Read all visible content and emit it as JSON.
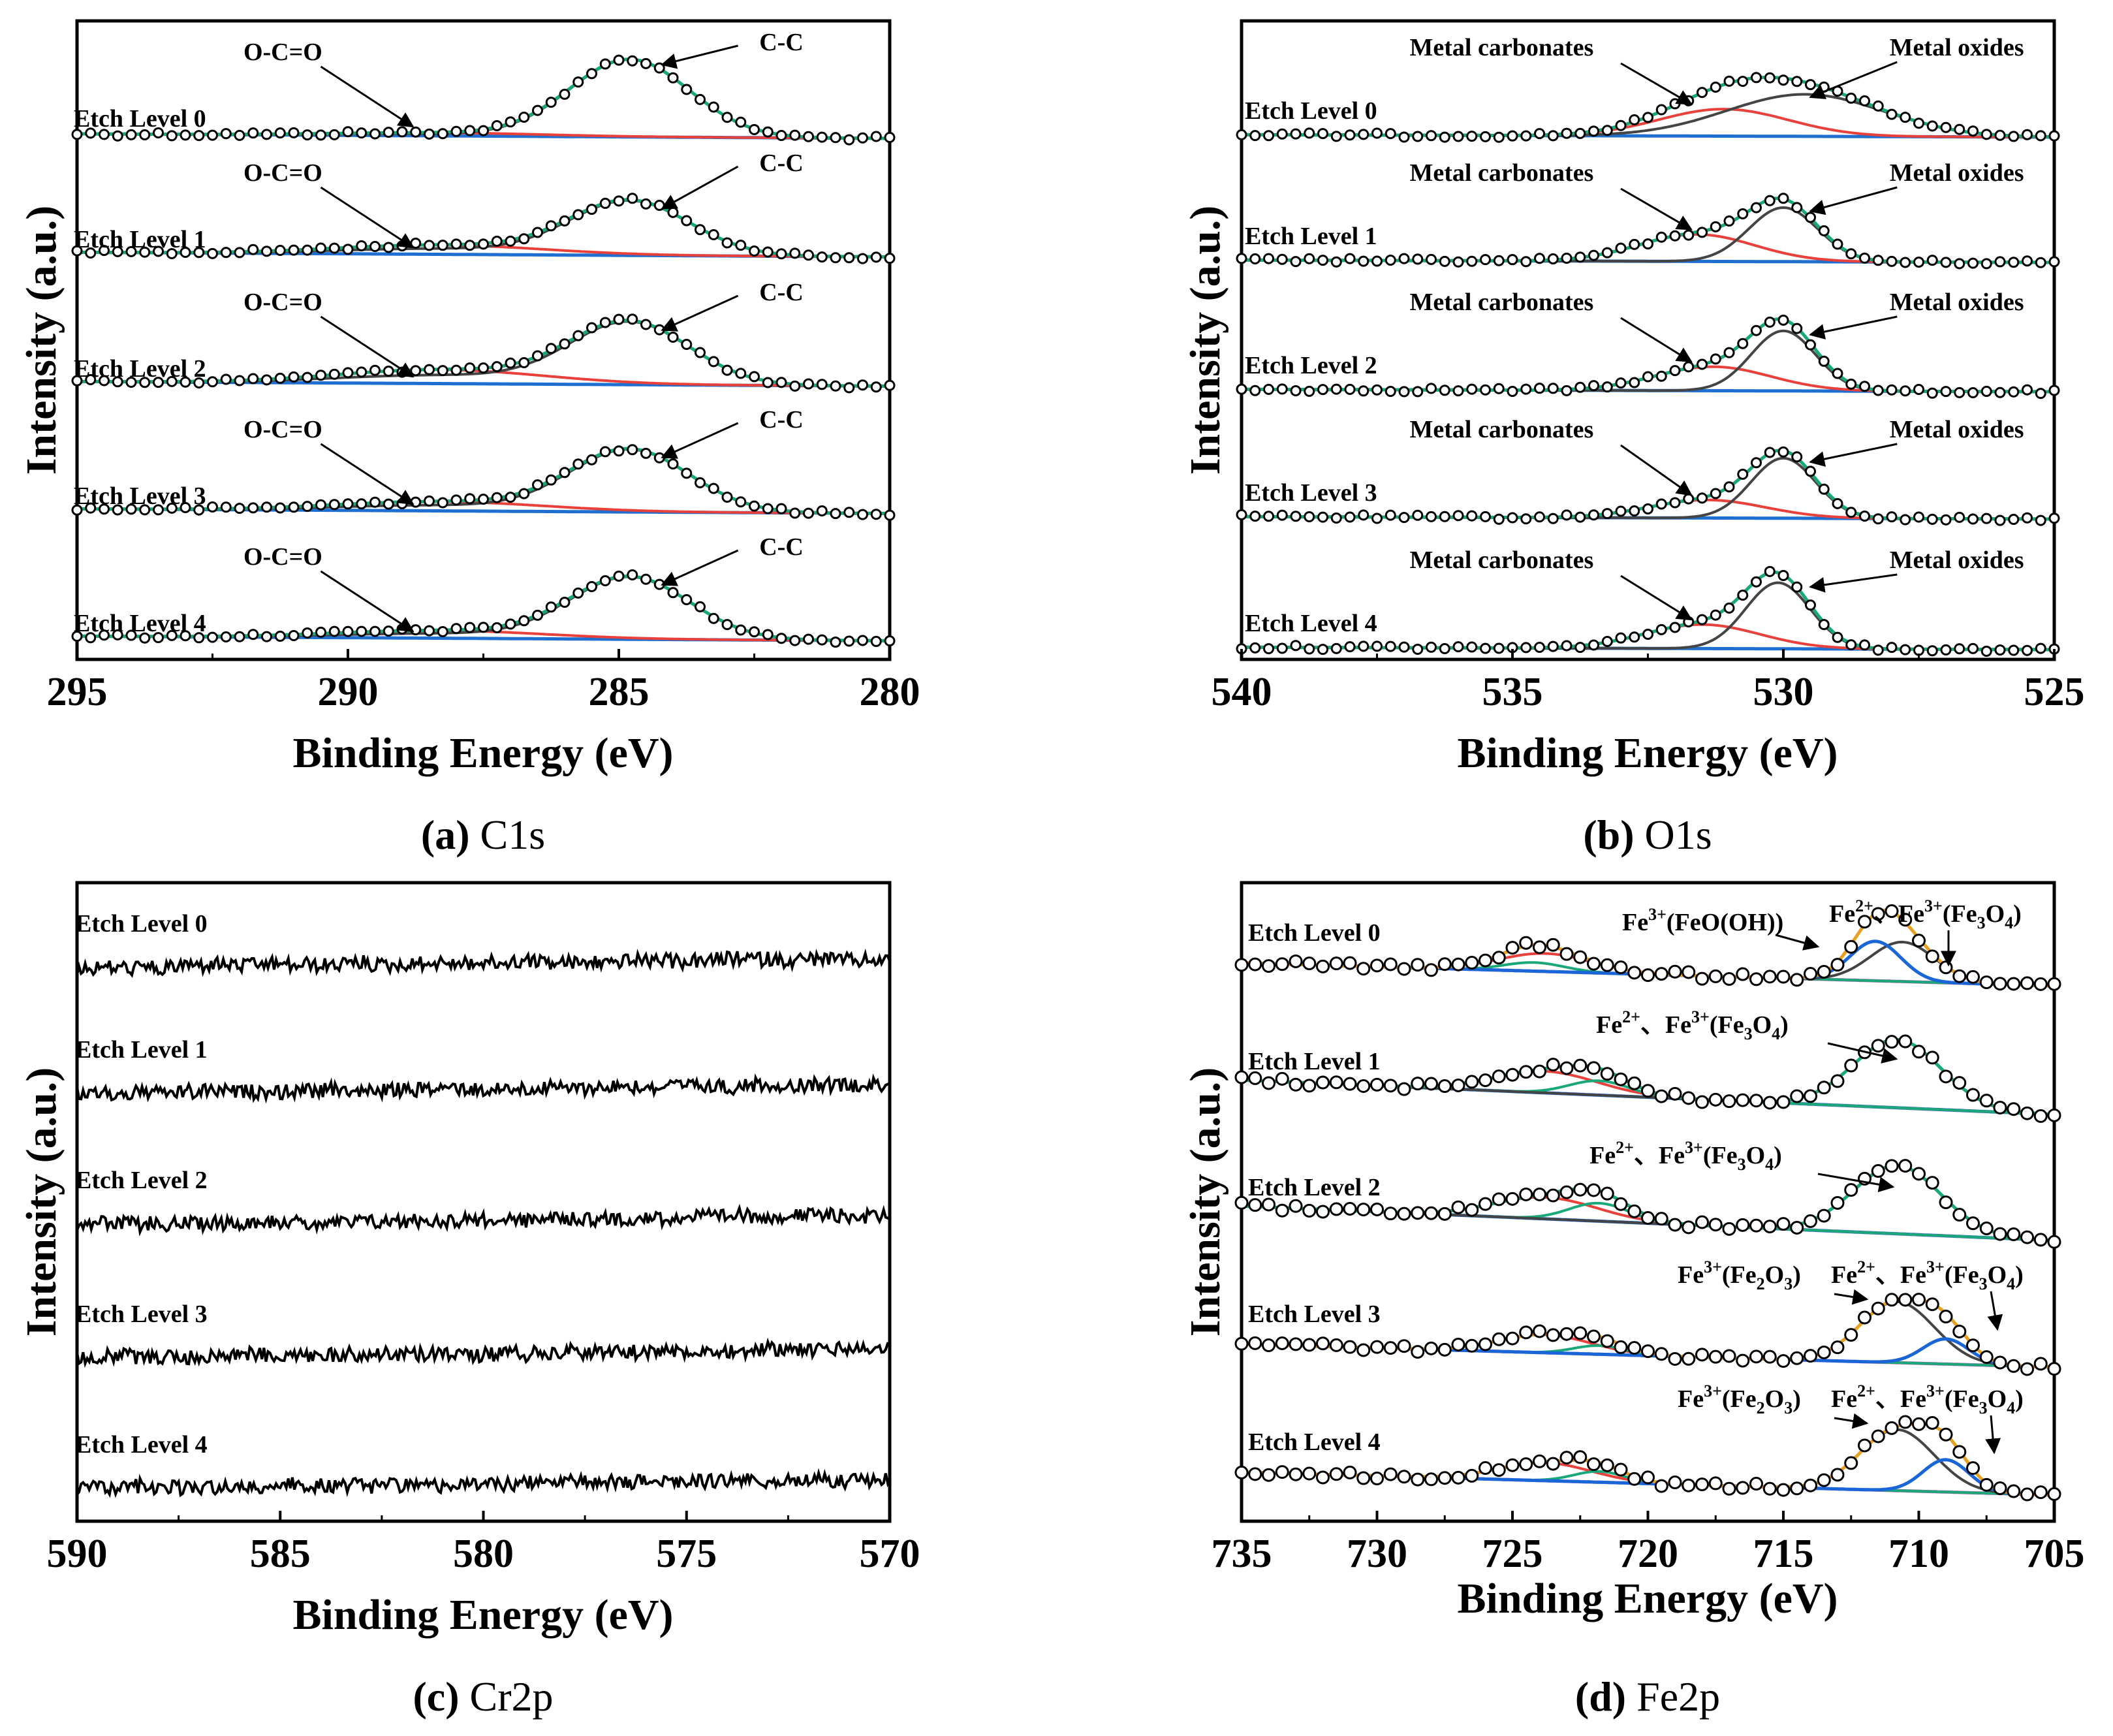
{
  "figure": {
    "level_labels": [
      "Etch Level 0",
      "Etch Level 1",
      "Etch Level 2",
      "Etch Level 3",
      "Etch Level 4"
    ]
  },
  "colors": {
    "data_point": "#000000",
    "envelope_fit": "#1aa87a",
    "main_peak": "#444444",
    "secondary_peak": "#e8403a",
    "background": "#1e6fd0",
    "fe_satellite": "#e8a020",
    "fe_baseline": "#b06ad4",
    "fe_fe3": "#1a66d6",
    "noise_trace": "#000000"
  },
  "chart_data": [
    {
      "id": "a",
      "type": "line",
      "caption_letter": "(a)",
      "caption_text": " C1s",
      "xlabel": "Binding Energy (eV)",
      "ylabel": "Intensity (a.u.)",
      "xlim": [
        295,
        280
      ],
      "xticks": [
        "295",
        "290",
        "285",
        "280"
      ],
      "xtick_values": [
        295,
        290,
        285,
        280
      ],
      "series_labels": [
        "Etch Level 0",
        "Etch Level 1",
        "Etch Level 2",
        "Etch Level 3",
        "Etch Level 4"
      ],
      "peak_labels": [
        "O-C=O",
        "C-C"
      ],
      "components": [
        {
          "name": "C-C",
          "center_eV": 284.8,
          "fwhm_eV": 2.6,
          "heights": [
            1.0,
            0.7,
            0.8,
            0.8,
            0.8
          ]
        },
        {
          "name": "O-C=O",
          "center_eV": 288.3,
          "fwhm_eV": 4.5,
          "heights": [
            0.04,
            0.12,
            0.18,
            0.12,
            0.1
          ]
        }
      ]
    },
    {
      "id": "b",
      "type": "line",
      "caption_letter": "(b)",
      "caption_text": " O1s",
      "xlabel": "Binding Energy (eV)",
      "ylabel": "Intensity (a.u.)",
      "xlim": [
        540,
        525
      ],
      "xticks": [
        "540",
        "535",
        "530",
        "525"
      ],
      "xtick_values": [
        540,
        535,
        530,
        525
      ],
      "series_labels": [
        "Etch Level 0",
        "Etch Level 1",
        "Etch Level 2",
        "Etch Level 3",
        "Etch Level 4"
      ],
      "peak_labels": [
        "Metal carbonates",
        "Metal oxides"
      ],
      "components": [
        {
          "name": "Metal oxides",
          "centers_eV": [
            529.6,
            530.0,
            530.0,
            530.0,
            530.1
          ],
          "fwhm_eV": [
            3.4,
            1.5,
            1.4,
            1.4,
            1.4
          ],
          "heights": [
            0.7,
            0.9,
            1.0,
            1.0,
            1.1
          ]
        },
        {
          "name": "Metal carbonates",
          "centers_eV": [
            531.1,
            531.6,
            531.3,
            531.4,
            531.5
          ],
          "fwhm_eV": [
            2.8,
            2.5,
            2.5,
            2.5,
            2.5
          ],
          "heights": [
            0.45,
            0.45,
            0.4,
            0.3,
            0.4
          ]
        }
      ]
    },
    {
      "id": "c",
      "type": "line",
      "caption_letter": "(c)",
      "caption_text": " Cr2p",
      "xlabel": "Binding Energy (eV)",
      "ylabel": "Intensity (a.u.)",
      "xlim": [
        590,
        570
      ],
      "xticks": [
        "590",
        "585",
        "580",
        "575",
        "570"
      ],
      "xtick_values": [
        590,
        585,
        580,
        575,
        570
      ],
      "series_labels": [
        "Etch Level 0",
        "Etch Level 1",
        "Etch Level 2",
        "Etch Level 3",
        "Etch Level 4"
      ],
      "note": "noise only, no Cr2p peaks"
    },
    {
      "id": "d",
      "type": "line",
      "caption_letter": "(d)",
      "caption_text": " Fe2p",
      "xlabel": "Binding Energy (eV)",
      "ylabel": "Intensity (a.u.)",
      "xlim": [
        735,
        705
      ],
      "xticks": [
        "735",
        "730",
        "725",
        "720",
        "715",
        "710",
        "705"
      ],
      "xtick_values": [
        735,
        730,
        725,
        720,
        715,
        710,
        705
      ],
      "series_labels": [
        "Etch Level 0",
        "Etch Level 1",
        "Etch Level 2",
        "Etch Level 3",
        "Etch Level 4"
      ],
      "components_note": "Fe2p3/2 near 710-711 eV, Fe2p1/2 near 723-724 eV, Fe3+(Fe2O3)/FeO(OH) near 709 eV"
    }
  ],
  "annotations": {
    "fe_feooh": {
      "main": "Fe",
      "sup": "3+",
      "rest": "(FeO(OH))"
    },
    "fe_fe3o4_prefix": {
      "a": "Fe",
      "a_sup": "2+",
      "sep": "、",
      "b": "Fe",
      "b_sup": "3+",
      "open": "(Fe",
      "sub1": "3",
      "mid": "O",
      "sub2": "4",
      "close": ")"
    },
    "fe_fe2o3": {
      "a": "Fe",
      "a_sup": "3+",
      "open": "(Fe",
      "sub1": "2",
      "mid": "O",
      "sub2": "3",
      "close": ")"
    }
  }
}
